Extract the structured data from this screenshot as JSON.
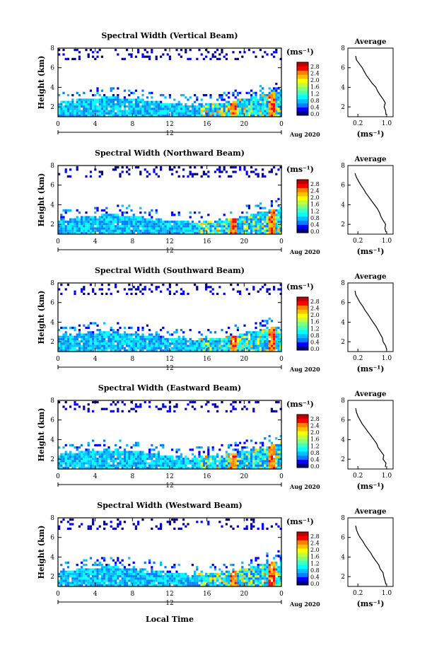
{
  "chart_data": [
    {
      "type": "heatmap",
      "title": "Spectral Width (Vertical Beam)",
      "ylabel": "Height (km)",
      "yticks": [
        "2",
        "4",
        "6",
        "8"
      ],
      "ylim": [
        1,
        8
      ],
      "xticks": [
        "0",
        "4",
        "8",
        "12",
        "16",
        "20",
        "0"
      ],
      "xlim": [
        0,
        24
      ],
      "date_center": "12",
      "date_label": "Aug 2020",
      "colorbar": {
        "unit": "(ms⁻¹)",
        "ticks": [
          "2.8",
          "2.4",
          "2.0",
          "1.6",
          "1.2",
          "0.8",
          "0.4",
          "0.0"
        ]
      },
      "avg_profile": {
        "title": "Average",
        "xlabel": "(ms⁻¹)",
        "xticks": [
          "0.2",
          "1.0"
        ],
        "yticks": [
          "2",
          "4",
          "6",
          "8"
        ],
        "heights": [
          1.2,
          1.6,
          2.0,
          2.4,
          2.8,
          3.2,
          3.6,
          4.0,
          4.4,
          4.8,
          5.2,
          5.6,
          6.0,
          6.4,
          6.8,
          7.2
        ],
        "values": [
          0.98,
          0.97,
          0.93,
          0.96,
          0.9,
          0.82,
          0.75,
          0.7,
          0.6,
          0.52,
          0.44,
          0.38,
          0.32,
          0.24,
          0.16,
          0.14
        ]
      }
    },
    {
      "type": "heatmap",
      "title": "Spectral Width (Northward Beam)",
      "ylabel": "Height (km)",
      "yticks": [
        "2",
        "4",
        "6",
        "8"
      ],
      "ylim": [
        1,
        8
      ],
      "xticks": [
        "0",
        "4",
        "8",
        "12",
        "16",
        "20",
        "0"
      ],
      "xlim": [
        0,
        24
      ],
      "date_center": "12",
      "date_label": "Aug 2020",
      "colorbar": {
        "unit": "(ms⁻¹)",
        "ticks": [
          "2.8",
          "2.4",
          "2.0",
          "1.6",
          "1.2",
          "0.8",
          "0.4",
          "0.0"
        ]
      },
      "avg_profile": {
        "title": "Average",
        "xlabel": "(ms⁻¹)",
        "xticks": [
          "0.2",
          "1.0"
        ],
        "yticks": [
          "2",
          "4",
          "6",
          "8"
        ],
        "heights": [
          1.2,
          1.6,
          2.0,
          2.4,
          2.8,
          3.2,
          3.6,
          4.0,
          4.4,
          4.8,
          5.2,
          5.6,
          6.0,
          6.4,
          6.8,
          7.2
        ],
        "values": [
          0.98,
          0.95,
          0.97,
          0.9,
          0.84,
          0.8,
          0.74,
          0.66,
          0.58,
          0.5,
          0.42,
          0.36,
          0.28,
          0.22,
          0.16,
          0.12
        ]
      }
    },
    {
      "type": "heatmap",
      "title": "Spectral Width (Southward Beam)",
      "ylabel": "Height (km)",
      "yticks": [
        "2",
        "4",
        "6",
        "8"
      ],
      "ylim": [
        1,
        8
      ],
      "xticks": [
        "0",
        "4",
        "8",
        "12",
        "16",
        "20",
        "0"
      ],
      "xlim": [
        0,
        24
      ],
      "date_center": "12",
      "date_label": "Aug 2020",
      "colorbar": {
        "unit": "(ms⁻¹)",
        "ticks": [
          "2.8",
          "2.4",
          "2.0",
          "1.6",
          "1.2",
          "0.8",
          "0.4",
          "0.0"
        ]
      },
      "avg_profile": {
        "title": "Average",
        "xlabel": "(ms⁻¹)",
        "xticks": [
          "0.2",
          "1.0"
        ],
        "yticks": [
          "2",
          "4",
          "6",
          "8"
        ],
        "heights": [
          1.2,
          1.6,
          2.0,
          2.4,
          2.8,
          3.2,
          3.6,
          4.0,
          4.4,
          4.8,
          5.2,
          5.6,
          6.0,
          6.4,
          6.8,
          7.2
        ],
        "values": [
          1.0,
          0.97,
          0.9,
          0.88,
          0.82,
          0.76,
          0.7,
          0.62,
          0.55,
          0.48,
          0.4,
          0.34,
          0.26,
          0.2,
          0.14,
          0.12
        ]
      }
    },
    {
      "type": "heatmap",
      "title": "Spectral Width (Eastward Beam)",
      "ylabel": "Height (km)",
      "yticks": [
        "2",
        "4",
        "6",
        "8"
      ],
      "ylim": [
        1,
        8
      ],
      "xticks": [
        "0",
        "4",
        "8",
        "12",
        "16",
        "20",
        "0"
      ],
      "xlim": [
        0,
        24
      ],
      "date_center": "12",
      "date_label": "Aug 2020",
      "colorbar": {
        "unit": "(ms⁻¹)",
        "ticks": [
          "2.8",
          "2.4",
          "2.0",
          "1.6",
          "1.2",
          "0.8",
          "0.4",
          "0.0"
        ]
      },
      "avg_profile": {
        "title": "Average",
        "xlabel": "(ms⁻¹)",
        "xticks": [
          "0.2",
          "1.0"
        ],
        "yticks": [
          "2",
          "4",
          "6",
          "8"
        ],
        "heights": [
          1.2,
          1.6,
          2.0,
          2.4,
          2.8,
          3.2,
          3.6,
          4.0,
          4.4,
          4.8,
          5.2,
          5.6,
          6.0,
          6.4,
          6.8,
          7.2
        ],
        "values": [
          0.96,
          0.98,
          0.9,
          0.92,
          0.84,
          0.76,
          0.72,
          0.64,
          0.56,
          0.48,
          0.4,
          0.32,
          0.26,
          0.2,
          0.16,
          0.14
        ]
      }
    },
    {
      "type": "heatmap",
      "title": "Spectral Width (Westward Beam)",
      "ylabel": "Height (km)",
      "yticks": [
        "2",
        "4",
        "6",
        "8"
      ],
      "ylim": [
        1,
        8
      ],
      "xticks": [
        "0",
        "4",
        "8",
        "12",
        "16",
        "20",
        "0"
      ],
      "xlim": [
        0,
        24
      ],
      "date_center": "12",
      "date_label": "Aug 2020",
      "colorbar": {
        "unit": "(ms⁻¹)",
        "ticks": [
          "2.8",
          "2.4",
          "2.0",
          "1.6",
          "1.2",
          "0.8",
          "0.4",
          "0.0"
        ]
      },
      "avg_profile": {
        "title": "Average",
        "xlabel": "(ms⁻¹)",
        "xticks": [
          "0.2",
          "1.0"
        ],
        "yticks": [
          "2",
          "4",
          "6",
          "8"
        ],
        "heights": [
          1.2,
          1.6,
          2.0,
          2.4,
          2.8,
          3.2,
          3.6,
          4.0,
          4.4,
          4.8,
          5.2,
          5.6,
          6.0,
          6.4,
          6.8,
          7.2
        ],
        "values": [
          0.98,
          0.95,
          0.92,
          0.9,
          0.82,
          0.78,
          0.7,
          0.62,
          0.56,
          0.48,
          0.4,
          0.34,
          0.26,
          0.2,
          0.16,
          0.14
        ]
      }
    }
  ],
  "footer": {
    "xlabel": "Local Time"
  },
  "colors": [
    "#000080",
    "#0000ff",
    "#0080ff",
    "#00c0ff",
    "#00ffff",
    "#40ffc0",
    "#80ff80",
    "#c0ff40",
    "#ffff00",
    "#ffc000",
    "#ff8000",
    "#ff0000",
    "#c00000"
  ]
}
